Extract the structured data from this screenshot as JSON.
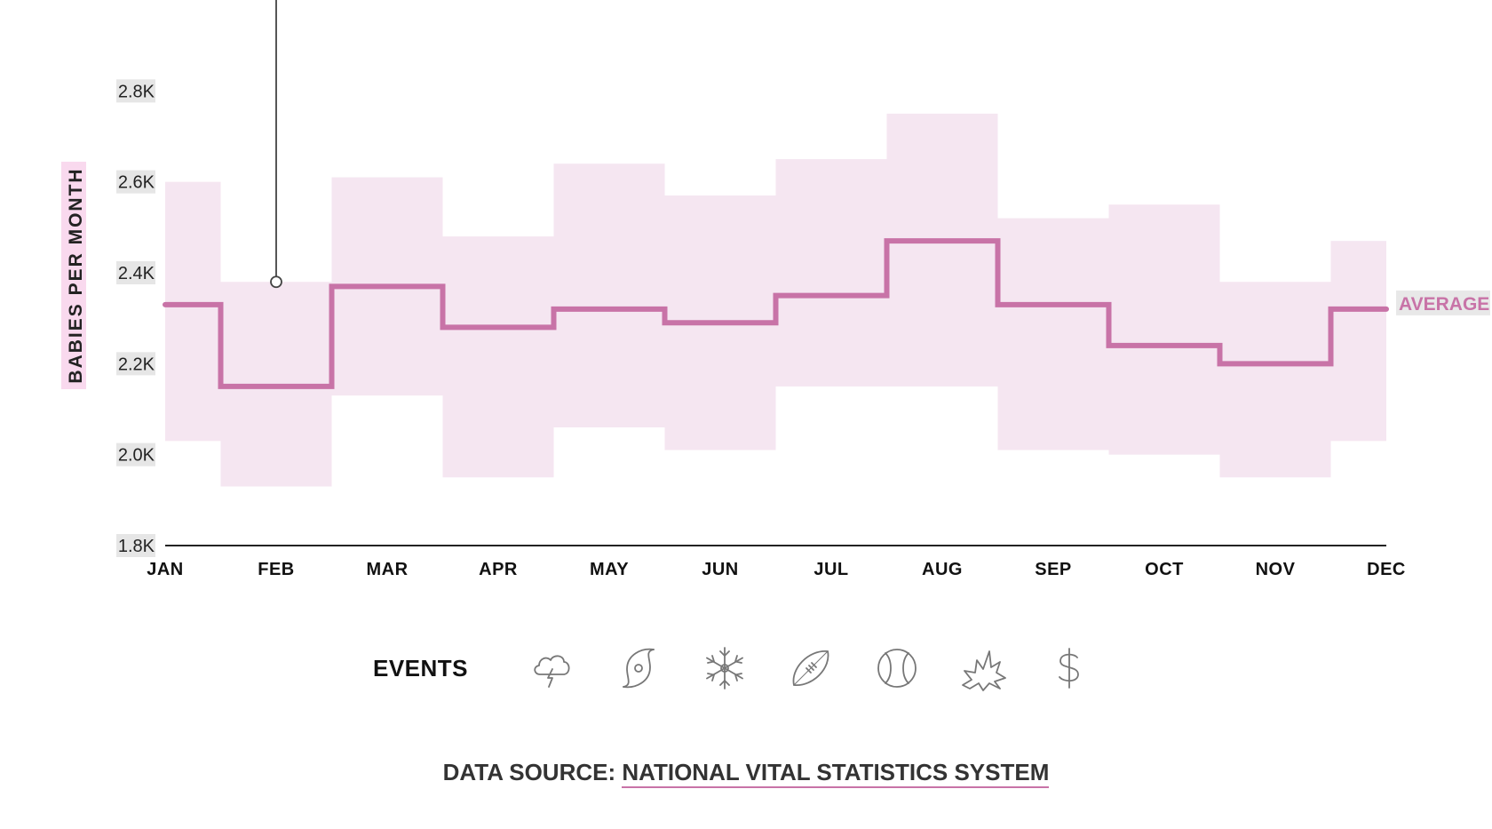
{
  "chart_data": {
    "type": "line",
    "step": true,
    "categories": [
      "JAN",
      "FEB",
      "MAR",
      "APR",
      "MAY",
      "JUN",
      "JUL",
      "AUG",
      "SEP",
      "OCT",
      "NOV",
      "DEC"
    ],
    "series": [
      {
        "name": "AVERAGE",
        "values": [
          2330,
          2150,
          2370,
          2280,
          2320,
          2290,
          2350,
          2470,
          2330,
          2240,
          2200,
          2320
        ]
      }
    ],
    "range_band": {
      "low": [
        2030,
        1930,
        2130,
        1950,
        2060,
        2010,
        2150,
        2150,
        2010,
        2000,
        1950,
        2030
      ],
      "high": [
        2600,
        2380,
        2610,
        2480,
        2640,
        2570,
        2650,
        2750,
        2520,
        2550,
        2380,
        2470
      ]
    },
    "ylabel": "BABIES PER MONTH",
    "xlabel": "",
    "ylim": [
      1800,
      3000
    ],
    "yticks": [
      "1.8K",
      "2.0K",
      "2.2K",
      "2.4K",
      "2.6K",
      "2.8K"
    ],
    "ytick_values": [
      1800,
      2000,
      2200,
      2400,
      2600,
      2800
    ],
    "annotation_pin": {
      "category": "FEB",
      "value": 2380
    },
    "colors": {
      "line": "#c873a7",
      "band": "#f5e6f1",
      "axis": "#222222",
      "tick_bg": "#e6e6e6",
      "label_highlight": "#f9d9ee"
    }
  },
  "events": {
    "title": "EVENTS",
    "icons": [
      "storm-cloud-icon",
      "hurricane-icon",
      "snowflake-icon",
      "football-icon",
      "baseball-icon",
      "explosion-icon",
      "dollar-icon"
    ]
  },
  "source": {
    "prefix": "DATA SOURCE: ",
    "link_text": "NATIONAL VITAL STATISTICS SYSTEM"
  }
}
